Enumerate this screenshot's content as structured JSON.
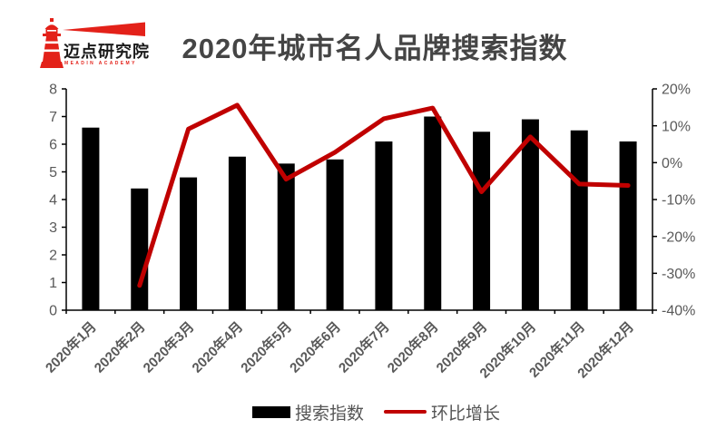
{
  "logo": {
    "name_cn": "迈点研究院",
    "name_en": "MEADIN ACADEMY",
    "red": "#e32119"
  },
  "title": "2020年城市名人品牌搜索指数",
  "legend": {
    "bar_label": "搜索指数",
    "line_label": "环比增长"
  },
  "colors": {
    "bar": "#000000",
    "line": "#c00000",
    "axis_text": "#595959",
    "title_text": "#454545"
  },
  "chart_data": {
    "type": "combo",
    "title": "2020年城市名人品牌搜索指数",
    "categories": [
      "2020年1月",
      "2020年2月",
      "2020年3月",
      "2020年4月",
      "2020年5月",
      "2020年6月",
      "2020年7月",
      "2020年8月",
      "2020年9月",
      "2020年10月",
      "2020年11月",
      "2020年12月"
    ],
    "series": [
      {
        "name": "搜索指数",
        "type": "bar",
        "axis": "left",
        "color": "#000000",
        "values": [
          6.6,
          4.4,
          4.8,
          5.55,
          5.3,
          5.45,
          6.1,
          7.0,
          6.45,
          6.9,
          6.5,
          6.1
        ]
      },
      {
        "name": "环比增长",
        "type": "line",
        "axis": "right",
        "color": "#c00000",
        "unit": "%",
        "values": [
          null,
          -33.3,
          9.1,
          15.6,
          -4.5,
          2.8,
          11.9,
          14.8,
          -7.9,
          7.0,
          -5.8,
          -6.2
        ]
      }
    ],
    "left_axis": {
      "min": 0,
      "max": 8,
      "tick_labels": [
        "8",
        "7",
        "6",
        "5",
        "4",
        "3",
        "2",
        "1",
        "0"
      ]
    },
    "right_axis": {
      "min": -40,
      "max": 20,
      "tick_labels": [
        "20%",
        "10%",
        "0%",
        "-10%",
        "-20%",
        "-30%",
        "-40%"
      ]
    },
    "grid": false,
    "legend_position": "bottom",
    "x_label_rotation": -45
  }
}
